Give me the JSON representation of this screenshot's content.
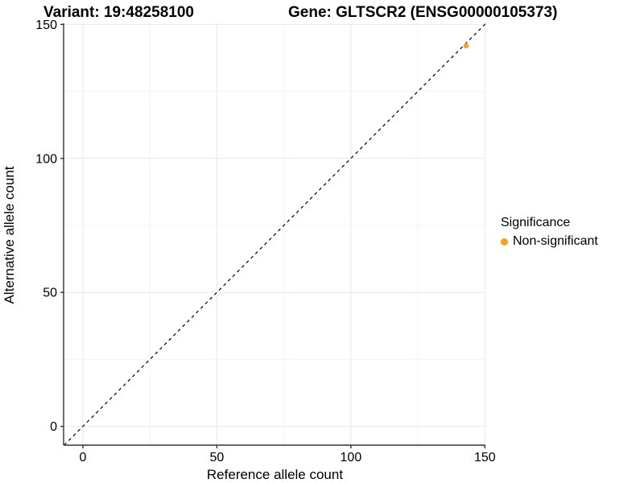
{
  "header": {
    "variant_title": "Variant: 19:48258100",
    "gene_title": "Gene: GLTSCR2 (ENSG00000105373)"
  },
  "axes": {
    "x_label": "Reference allele count",
    "y_label": "Alternative allele count"
  },
  "legend": {
    "title": "Significance",
    "items": [
      {
        "label": "Non-significant",
        "color": "#F8A11D"
      }
    ]
  },
  "colors": {
    "point_orange": "#F8A11D",
    "axis_line": "#333333",
    "grid_major": "#E8E8E8",
    "grid_minor": "#F3F3F3",
    "identity_line": "#000000",
    "background": "#FFFFFF"
  },
  "chart_data": {
    "type": "scatter",
    "title": "Variant: 19:48258100 — Gene: GLTSCR2 (ENSG00000105373)",
    "xlabel": "Reference allele count",
    "ylabel": "Alternative allele count",
    "xlim": [
      -7.2,
      150.2
    ],
    "ylim": [
      -7.0,
      150.4
    ],
    "x_ticks": [
      0,
      50,
      100,
      150
    ],
    "y_ticks": [
      0,
      50,
      100,
      150
    ],
    "x_minor_ticks": [
      25,
      75,
      125
    ],
    "y_minor_ticks": [
      25,
      75,
      125
    ],
    "grid": true,
    "legend_position": "right",
    "reference_line": {
      "type": "identity",
      "style": "dashed",
      "equation": "y = x"
    },
    "series": [
      {
        "name": "Non-significant",
        "color": "#F8A11D",
        "points": [
          {
            "x": 143,
            "y": 142
          }
        ]
      }
    ]
  }
}
